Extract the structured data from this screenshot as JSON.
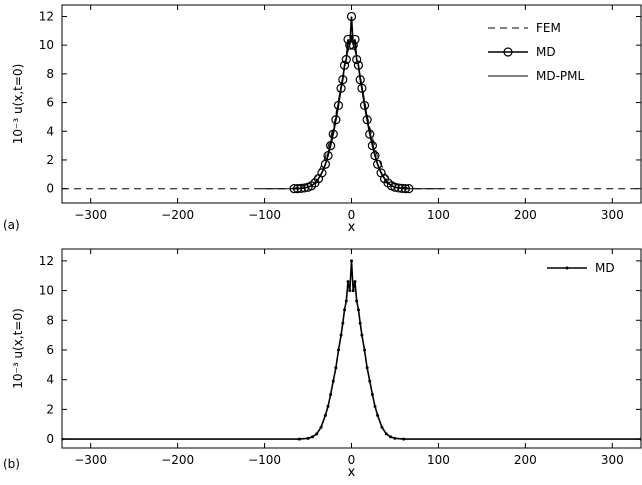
{
  "chart_data": [
    {
      "panel_label": "(a)",
      "type": "line",
      "xlabel": "x",
      "ylabel": "10⁻³ u(x,t=0)",
      "xlim": [
        -333,
        333
      ],
      "ylim": [
        -1,
        12.8
      ],
      "xticks": [
        -300,
        -200,
        -100,
        0,
        100,
        200,
        300
      ],
      "xtick_labels": [
        "−300",
        "−200",
        "−100",
        "0",
        "100",
        "200",
        "300"
      ],
      "yticks": [
        0,
        2,
        4,
        6,
        8,
        10,
        12
      ],
      "ytick_labels": [
        "0",
        "2",
        "4",
        "6",
        "8",
        "10",
        "12"
      ],
      "legend_position": "top-right",
      "grid": false,
      "series": [
        {
          "name": "FEM",
          "style": "dashed",
          "x": [
            -333,
            -70,
            -60,
            -50,
            -40,
            -30,
            -20,
            -10,
            -5,
            0,
            5,
            10,
            20,
            30,
            40,
            50,
            60,
            70,
            333
          ],
          "y": [
            0,
            0,
            0.1,
            0.3,
            0.9,
            2.2,
            4.5,
            7.8,
            9.4,
            10.5,
            9.4,
            7.8,
            4.5,
            2.2,
            0.9,
            0.3,
            0.1,
            0,
            0
          ]
        },
        {
          "name": "MD",
          "style": "solid-circles",
          "x": [
            -66,
            -62,
            -58,
            -54,
            -50,
            -46,
            -42,
            -38,
            -34,
            -30,
            -27,
            -24,
            -21,
            -18,
            -15,
            -12,
            -10,
            -8,
            -6,
            -4,
            -2,
            0,
            2,
            4,
            6,
            8,
            10,
            12,
            15,
            18,
            21,
            24,
            27,
            30,
            34,
            38,
            42,
            46,
            50,
            54,
            58,
            62,
            66
          ],
          "y": [
            0,
            0,
            0.02,
            0.05,
            0.1,
            0.2,
            0.4,
            0.7,
            1.1,
            1.7,
            2.3,
            3.0,
            3.8,
            4.8,
            5.8,
            7.0,
            7.6,
            8.6,
            9.0,
            10.4,
            10.0,
            12.0,
            10.0,
            10.4,
            9.0,
            8.6,
            7.6,
            7.0,
            5.8,
            4.8,
            3.8,
            3.0,
            2.3,
            1.7,
            1.1,
            0.7,
            0.4,
            0.2,
            0.1,
            0.05,
            0.02,
            0,
            0
          ]
        },
        {
          "name": "MD-PML",
          "style": "solid-thin",
          "x": [
            -105,
            -66,
            -50,
            -40,
            -30,
            -20,
            -10,
            -5,
            0,
            5,
            10,
            20,
            30,
            40,
            50,
            66,
            105
          ],
          "y": [
            0,
            0,
            0.1,
            0.4,
            1.7,
            4.3,
            7.9,
            9.4,
            10.7,
            9.4,
            7.9,
            4.3,
            1.7,
            0.4,
            0.1,
            0,
            0
          ]
        }
      ]
    },
    {
      "panel_label": "(b)",
      "type": "line",
      "xlabel": "x",
      "ylabel": "10⁻³ u(x,t=0)",
      "xlim": [
        -333,
        333
      ],
      "ylim": [
        -0.6,
        12.8
      ],
      "xticks": [
        -300,
        -200,
        -100,
        0,
        100,
        200,
        300
      ],
      "xtick_labels": [
        "−300",
        "−200",
        "−100",
        "0",
        "100",
        "200",
        "300"
      ],
      "yticks": [
        0,
        2,
        4,
        6,
        8,
        10,
        12
      ],
      "ytick_labels": [
        "0",
        "2",
        "4",
        "6",
        "8",
        "10",
        "12"
      ],
      "legend_position": "top-right",
      "grid": false,
      "series": [
        {
          "name": "MD",
          "style": "solid-dots",
          "x": [
            -333,
            -60,
            -50,
            -45,
            -40,
            -35,
            -30,
            -27,
            -24,
            -21,
            -18,
            -15,
            -12,
            -10,
            -8,
            -6,
            -4,
            -2,
            0,
            2,
            4,
            6,
            8,
            10,
            12,
            15,
            18,
            21,
            24,
            27,
            30,
            35,
            40,
            45,
            50,
            60,
            333
          ],
          "y": [
            0,
            0,
            0.05,
            0.15,
            0.35,
            0.8,
            1.6,
            2.2,
            3.0,
            3.9,
            4.8,
            6.0,
            7.0,
            7.8,
            8.7,
            9.3,
            10.6,
            10.0,
            12.0,
            10.0,
            10.6,
            9.3,
            8.7,
            7.8,
            7.0,
            6.0,
            4.8,
            3.9,
            3.0,
            2.2,
            1.6,
            0.8,
            0.35,
            0.15,
            0.05,
            0,
            0
          ]
        }
      ]
    }
  ]
}
